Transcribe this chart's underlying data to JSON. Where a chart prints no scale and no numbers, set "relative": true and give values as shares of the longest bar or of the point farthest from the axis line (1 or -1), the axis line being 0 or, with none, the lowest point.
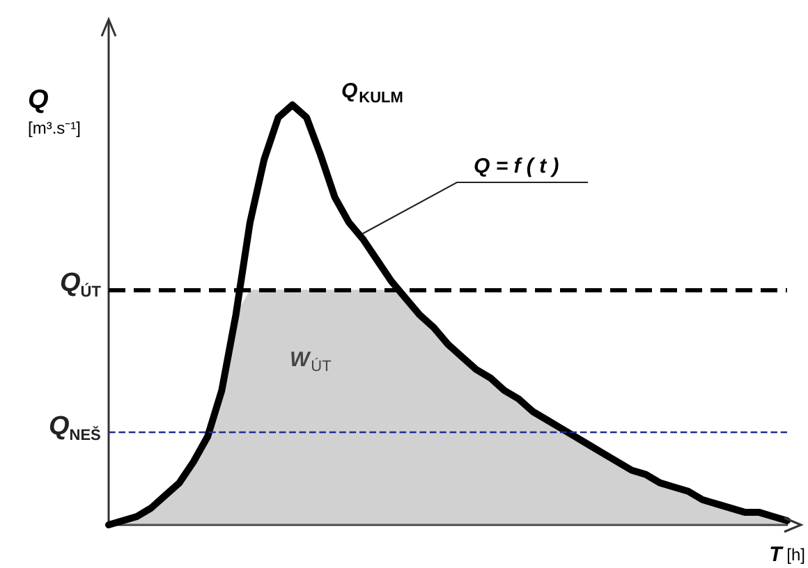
{
  "chart_data": {
    "type": "line",
    "relative": true,
    "xlabel": "T [h]",
    "ylabel": "Q [m³.s⁻¹]",
    "categories": [
      null,
      null,
      null,
      null,
      null,
      null,
      null,
      null,
      null,
      null,
      null,
      null,
      null,
      null,
      null,
      null,
      null,
      null,
      null,
      null,
      null,
      null,
      null,
      null,
      null,
      null,
      null,
      null,
      null,
      null,
      null,
      null,
      null,
      null,
      null,
      null,
      null,
      null,
      null,
      null,
      null,
      null,
      null,
      null,
      null,
      null,
      null,
      null,
      null
    ],
    "series": [
      {
        "type": "area",
        "name": "W$_{ÚT}$",
        "color": "#9a9a9a",
        "values": [
          0,
          0.01,
          0.02,
          0.04,
          0.07,
          0.1,
          0.15,
          0.21,
          0.32,
          0.5,
          0.56,
          0.56,
          0.56,
          0.56,
          0.56,
          0.56,
          0.56,
          0.56,
          0.56,
          0.56,
          0.56,
          0.54,
          0.5,
          0.47,
          0.43,
          0.4,
          0.37,
          0.35,
          0.32,
          0.3,
          0.27,
          0.25,
          0.23,
          0.21,
          0.19,
          0.17,
          0.15,
          0.13,
          0.12,
          0.1,
          0.09,
          0.08,
          0.06,
          0.05,
          0.04,
          0.03,
          0.03,
          0.02,
          0.01
        ]
      },
      {
        "color": "#000000",
        "values": [
          0,
          0.01,
          0.02,
          0.04,
          0.07,
          0.1,
          0.15,
          0.21,
          0.32,
          0.5,
          0.72,
          0.87,
          0.97,
          1,
          0.97,
          0.88,
          0.78,
          0.72,
          0.68,
          0.63,
          0.58,
          0.54,
          0.5,
          0.47,
          0.43,
          0.4,
          0.37,
          0.35,
          0.32,
          0.3,
          0.27,
          0.25,
          0.23,
          0.21,
          0.19,
          0.17,
          0.15,
          0.13,
          0.12,
          0.1,
          0.09,
          0.08,
          0.06,
          0.05,
          0.04,
          0.03,
          0.03,
          0.02,
          0.01
        ]
      }
    ],
    "ref_lines": [
      {
        "axis": "y",
        "value": 0.56,
        "label": "Q$_{ÚT}$",
        "color": "#000000",
        "line_style": "dashed"
      },
      {
        "axis": "y",
        "value": 0.22,
        "label": "Q$_{NEŠ}$",
        "color": "#1f2f8f",
        "line_style": "dashed"
      }
    ],
    "annotations": [
      "Q$_{KULM}$",
      "Q = f ( t )"
    ],
    "marker": "none",
    "grid": false,
    "legend": false
  }
}
